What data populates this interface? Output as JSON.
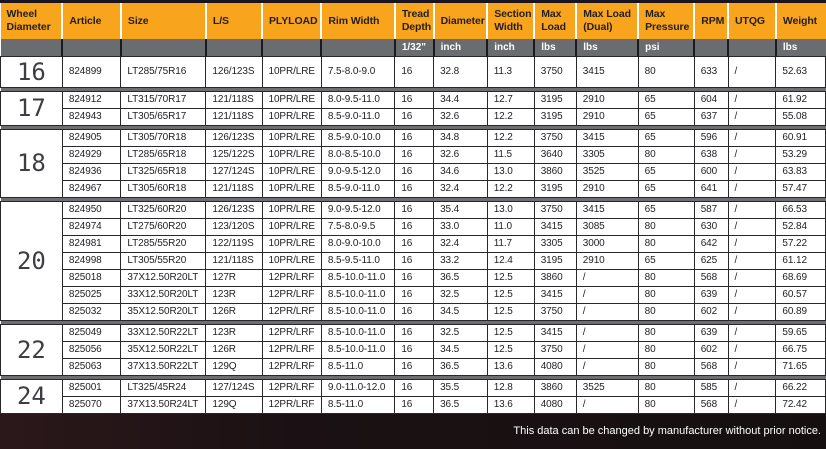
{
  "colors": {
    "header_bg": "#F9A41D",
    "header_text": "#231F20",
    "units_bg": "#6B6C6F",
    "separator": "#6D6E71",
    "body_text": "#1F1F22",
    "diameter_text": "#3D3E42",
    "top_strip": "#1A1420"
  },
  "table": {
    "columns": [
      {
        "label": "Wheel Diameter",
        "unit": ""
      },
      {
        "label": "Article",
        "unit": ""
      },
      {
        "label": "Size",
        "unit": ""
      },
      {
        "label": "L/S",
        "unit": ""
      },
      {
        "label": "PLYLOAD",
        "unit": ""
      },
      {
        "label": "Rim Width",
        "unit": ""
      },
      {
        "label": "Tread Depth",
        "unit": "1/32\""
      },
      {
        "label": "Diameter",
        "unit": "inch"
      },
      {
        "label": "Section Width",
        "unit": "inch"
      },
      {
        "label": "Max Load",
        "unit": "lbs"
      },
      {
        "label": "Max Load (Dual)",
        "unit": "lbs"
      },
      {
        "label": "Max Pressure",
        "unit": "psi"
      },
      {
        "label": "RPM",
        "unit": ""
      },
      {
        "label": "UTQG",
        "unit": ""
      },
      {
        "label": "Weight",
        "unit": "lbs"
      }
    ],
    "groups": [
      {
        "wheel_diameter": "16",
        "rows": [
          [
            "824899",
            "LT285/75R16",
            "126/123S",
            "10PR/LRE",
            "7.5-8.0-9.0",
            "16",
            "32.8",
            "11.3",
            "3750",
            "3415",
            "80",
            "633",
            "/",
            "52.63"
          ]
        ]
      },
      {
        "wheel_diameter": "17",
        "rows": [
          [
            "824912",
            "LT315/70R17",
            "121/118S",
            "10PR/LRE",
            "8.0-9.5-11.0",
            "16",
            "34.4",
            "12.7",
            "3195",
            "2910",
            "65",
            "604",
            "/",
            "61.92"
          ],
          [
            "824943",
            "LT305/65R17",
            "121/118S",
            "10PR/LRE",
            "8.5-9.0-11.0",
            "16",
            "32.6",
            "12.2",
            "3195",
            "2910",
            "65",
            "637",
            "/",
            "55.08"
          ]
        ]
      },
      {
        "wheel_diameter": "18",
        "rows": [
          [
            "824905",
            "LT305/70R18",
            "126/123S",
            "10PR/LRE",
            "8.5-9.0-10.0",
            "16",
            "34.8",
            "12.2",
            "3750",
            "3415",
            "65",
            "596",
            "/",
            "60.91"
          ],
          [
            "824929",
            "LT285/65R18",
            "125/122S",
            "10PR/LRE",
            "8.0-8.5-10.0",
            "16",
            "32.6",
            "11.5",
            "3640",
            "3305",
            "80",
            "638",
            "/",
            "53.29"
          ],
          [
            "824936",
            "LT325/65R18",
            "127/124S",
            "10PR/LRE",
            "9.0-9.5-12.0",
            "16",
            "34.6",
            "13.0",
            "3860",
            "3525",
            "65",
            "600",
            "/",
            "63.83"
          ],
          [
            "824967",
            "LT305/60R18",
            "121/118S",
            "10PR/LRE",
            "8.5-9.0-11.0",
            "16",
            "32.4",
            "12.2",
            "3195",
            "2910",
            "65",
            "641",
            "/",
            "57.47"
          ]
        ]
      },
      {
        "wheel_diameter": "20",
        "rows": [
          [
            "824950",
            "LT325/60R20",
            "126/123S",
            "10PR/LRE",
            "9.0-9.5-12.0",
            "16",
            "35.4",
            "13.0",
            "3750",
            "3415",
            "65",
            "587",
            "/",
            "66.53"
          ],
          [
            "824974",
            "LT275/60R20",
            "123/120S",
            "10PR/LRE",
            "7.5-8.0-9.5",
            "16",
            "33.0",
            "11.0",
            "3415",
            "3085",
            "80",
            "630",
            "/",
            "52.84"
          ],
          [
            "824981",
            "LT285/55R20",
            "122/119S",
            "10PR/LRE",
            "8.0-9.0-10.0",
            "16",
            "32.4",
            "11.7",
            "3305",
            "3000",
            "80",
            "642",
            "/",
            "57.22"
          ],
          [
            "824998",
            "LT305/55R20",
            "121/118S",
            "10PR/LRE",
            "8.5-9.5-11.0",
            "16",
            "33.2",
            "12.4",
            "3195",
            "2910",
            "65",
            "625",
            "/",
            "61.12"
          ],
          [
            "825018",
            "37X12.50R20LT",
            "127R",
            "12PR/LRF",
            "8.5-10.0-11.0",
            "16",
            "36.5",
            "12.5",
            "3860",
            "/",
            "80",
            "568",
            "/",
            "68.69"
          ],
          [
            "825025",
            "33X12.50R20LT",
            "123R",
            "12PR/LRF",
            "8.5-10.0-11.0",
            "16",
            "32.5",
            "12.5",
            "3415",
            "/",
            "80",
            "639",
            "/",
            "60.57"
          ],
          [
            "825032",
            "35X12.50R20LT",
            "126R",
            "12PR/LRF",
            "8.5-10.0-11.0",
            "16",
            "34.5",
            "12.5",
            "3750",
            "/",
            "80",
            "602",
            "/",
            "60.89"
          ]
        ]
      },
      {
        "wheel_diameter": "22",
        "rows": [
          [
            "825049",
            "33X12.50R22LT",
            "123R",
            "12PR/LRF",
            "8.5-10.0-11.0",
            "16",
            "32.5",
            "12.5",
            "3415",
            "/",
            "80",
            "639",
            "/",
            "59.65"
          ],
          [
            "825056",
            "35X12.50R22LT",
            "126R",
            "12PR/LRF",
            "8.5-10.0-11.0",
            "16",
            "34.5",
            "12.5",
            "3750",
            "/",
            "80",
            "602",
            "/",
            "66.75"
          ],
          [
            "825063",
            "37X13.50R22LT",
            "129Q",
            "12PR/LRF",
            "8.5-11.0",
            "16",
            "36.5",
            "13.6",
            "4080",
            "/",
            "80",
            "568",
            "/",
            "71.65"
          ]
        ]
      },
      {
        "wheel_diameter": "24",
        "rows": [
          [
            "825001",
            "LT325/45R24",
            "127/124S",
            "12PR/LRF",
            "9.0-11.0-12.0",
            "16",
            "35.5",
            "12.8",
            "3860",
            "3525",
            "80",
            "585",
            "/",
            "66.22"
          ],
          [
            "825070",
            "37X13.50R24LT",
            "129Q",
            "12PR/LRF",
            "8.5-11.0",
            "16",
            "36.5",
            "13.6",
            "4080",
            "/",
            "80",
            "568",
            "/",
            "72.42"
          ]
        ]
      }
    ],
    "footer_note": "This data can be changed by manufacturer without prior notice."
  }
}
